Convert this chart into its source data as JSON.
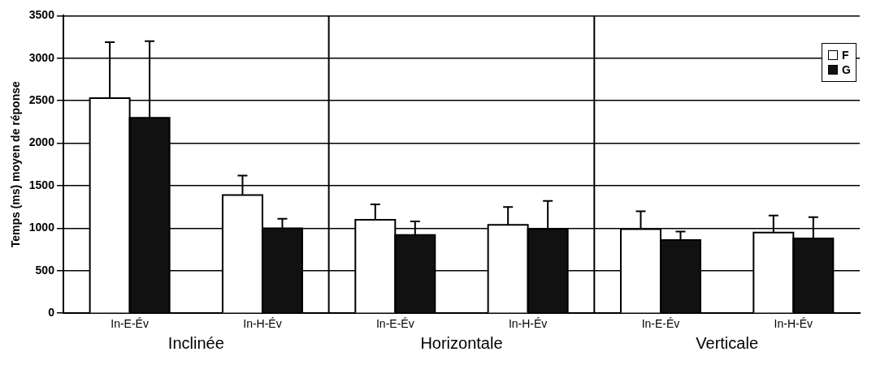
{
  "chart_data": {
    "type": "bar",
    "ylabel": "Temps (ms) moyen de réponse",
    "categories": [
      "In-E-Év",
      "In-H-Év",
      "In-E-Év",
      "In-H-Év",
      "In-E-Év",
      "In-H-Év"
    ],
    "series": [
      {
        "name": "F",
        "color": "#ffffff",
        "values": [
          2530,
          1390,
          1100,
          1040,
          990,
          950
        ],
        "errors": [
          [
            2530,
            3190
          ],
          [
            1390,
            1620
          ],
          [
            1100,
            1280
          ],
          [
            1040,
            1250
          ],
          [
            990,
            1200
          ],
          [
            950,
            1150
          ]
        ]
      },
      {
        "name": "G",
        "color": "#111111",
        "values": [
          2300,
          1000,
          920,
          990,
          860,
          880
        ],
        "errors": [
          [
            2300,
            3200
          ],
          [
            1000,
            1110
          ],
          [
            920,
            1080
          ],
          [
            990,
            1320
          ],
          [
            860,
            960
          ],
          [
            880,
            1130
          ]
        ]
      }
    ],
    "annotations": [
      "Inclinée",
      "Horizontale",
      "Verticale"
    ],
    "ylim": [
      0,
      3500
    ],
    "yticks": [
      0,
      500,
      1000,
      1500,
      2000,
      2500,
      3000,
      3500
    ],
    "grid": "y",
    "legend": "top right"
  }
}
